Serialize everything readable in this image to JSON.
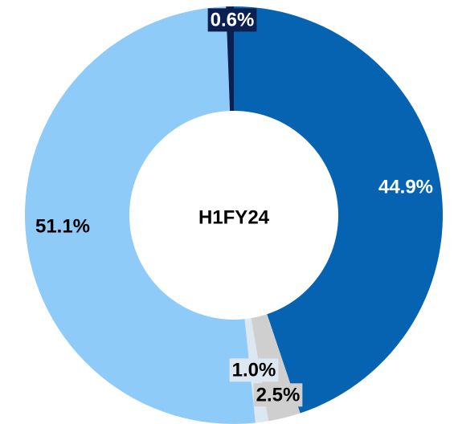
{
  "chart_data": {
    "type": "donut",
    "center_label": "H1FY24",
    "categories": [
      null,
      null,
      null,
      null,
      null
    ],
    "values": [
      44.9,
      2.5,
      1.0,
      51.1,
      0.6
    ],
    "value_labels": [
      "44.9%",
      "2.5%",
      "1.0%",
      "51.1%",
      "0.6%"
    ],
    "colors": [
      "#0563b1",
      "#cfcfcf",
      "#dde7f2",
      "#8fcbf9",
      "#0b1f50"
    ]
  }
}
